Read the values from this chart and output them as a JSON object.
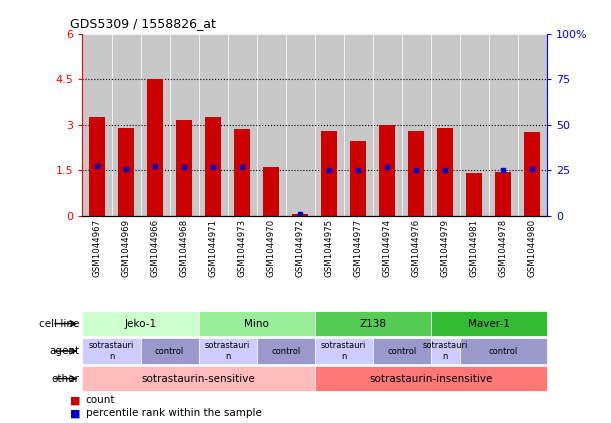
{
  "title": "GDS5309 / 1558826_at",
  "samples": [
    "GSM1044967",
    "GSM1044969",
    "GSM1044966",
    "GSM1044968",
    "GSM1044971",
    "GSM1044973",
    "GSM1044970",
    "GSM1044972",
    "GSM1044975",
    "GSM1044977",
    "GSM1044974",
    "GSM1044976",
    "GSM1044979",
    "GSM1044981",
    "GSM1044978",
    "GSM1044980"
  ],
  "bar_heights": [
    3.25,
    2.9,
    4.5,
    3.15,
    3.25,
    2.85,
    1.6,
    0.05,
    2.8,
    2.45,
    3.0,
    2.8,
    2.9,
    1.4,
    1.45,
    2.75
  ],
  "blue_dot_y": [
    1.65,
    1.55,
    1.65,
    1.6,
    1.6,
    1.6,
    null,
    0.05,
    1.5,
    1.5,
    1.6,
    1.5,
    1.5,
    null,
    1.5,
    1.55
  ],
  "ylim": [
    0,
    6
  ],
  "yticks": [
    0,
    1.5,
    3.0,
    4.5,
    6
  ],
  "ytick_labels": [
    "0",
    "1.5",
    "3",
    "4.5",
    "6"
  ],
  "y2ticks": [
    0,
    25,
    50,
    75,
    100
  ],
  "y2tick_labels": [
    "0",
    "25",
    "50",
    "75",
    "100%"
  ],
  "cell_line_groups": [
    {
      "label": "Jeko-1",
      "start": 0,
      "end": 3,
      "color": "#ccffcc"
    },
    {
      "label": "Mino",
      "start": 4,
      "end": 7,
      "color": "#99ee99"
    },
    {
      "label": "Z138",
      "start": 8,
      "end": 11,
      "color": "#55cc55"
    },
    {
      "label": "Maver-1",
      "start": 12,
      "end": 15,
      "color": "#33bb33"
    }
  ],
  "agent_groups": [
    {
      "label": "sotrastaurin",
      "start": 0,
      "end": 1,
      "color": "#ccccff"
    },
    {
      "label": "control",
      "start": 2,
      "end": 3,
      "color": "#9999cc"
    },
    {
      "label": "sotrastaurin",
      "start": 4,
      "end": 5,
      "color": "#ccccff"
    },
    {
      "label": "control",
      "start": 6,
      "end": 7,
      "color": "#9999cc"
    },
    {
      "label": "sotrastaurin",
      "start": 8,
      "end": 9,
      "color": "#ccccff"
    },
    {
      "label": "control",
      "start": 10,
      "end": 11,
      "color": "#9999cc"
    },
    {
      "label": "sotrastaurin",
      "start": 12,
      "end": 12,
      "color": "#ccccff"
    },
    {
      "label": "control",
      "start": 13,
      "end": 15,
      "color": "#9999cc"
    }
  ],
  "other_groups": [
    {
      "label": "sotrastaurin-sensitive",
      "start": 0,
      "end": 7,
      "color": "#ffbbbb"
    },
    {
      "label": "sotrastaurin-insensitive",
      "start": 8,
      "end": 15,
      "color": "#ff7777"
    }
  ],
  "bar_color": "#cc0000",
  "dot_color": "#0000cc",
  "row_labels": [
    "cell line",
    "agent",
    "other"
  ],
  "legend_items": [
    {
      "color": "#cc0000",
      "label": "count"
    },
    {
      "color": "#0000cc",
      "label": "percentile rank within the sample"
    }
  ]
}
